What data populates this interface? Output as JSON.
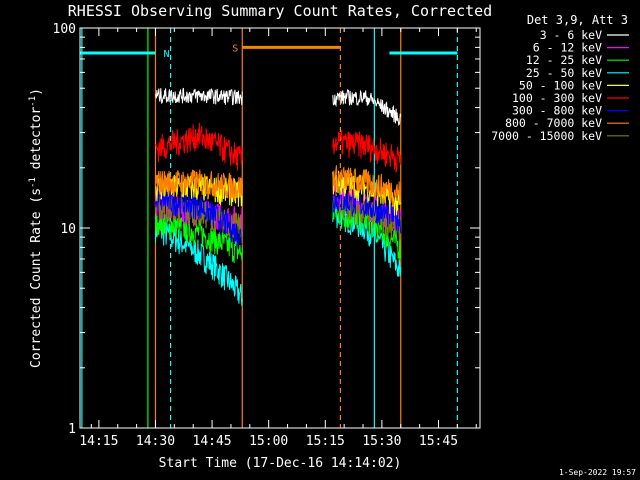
{
  "chart_data": {
    "type": "line",
    "title": "RHESSI Observing Summary Count Rates, Corrected",
    "xlabel": "Start Time (17-Dec-16 14:14:02)",
    "ylabel_main": "Corrected Count Rate (s",
    "ylabel_sup1": "-1",
    "ylabel_mid": " detector",
    "ylabel_sup2": "-1",
    "ylabel_end": ")",
    "yscale": "log",
    "ylim": [
      1,
      100
    ],
    "xlim": [
      "14:10",
      "15:56"
    ],
    "xlim_minutes": [
      850,
      956
    ],
    "xticks": [
      {
        "label": "14:15",
        "min": 855
      },
      {
        "label": "14:30",
        "min": 870
      },
      {
        "label": "14:45",
        "min": 885
      },
      {
        "label": "15:00",
        "min": 900
      },
      {
        "label": "15:15",
        "min": 915
      },
      {
        "label": "15:30",
        "min": 930
      },
      {
        "label": "15:45",
        "min": 945
      }
    ],
    "yticks": [
      {
        "label": "1",
        "value": 1
      },
      {
        "label": "10",
        "value": 10
      },
      {
        "label": "100",
        "value": 100
      }
    ],
    "legend_title": "Det 3,9, Att 3",
    "legend_position": "top-right",
    "series": [
      {
        "name": "3 - 6 keV",
        "color": "#ffffff",
        "seg1": [
          46,
          46,
          45
        ],
        "seg2": [
          45,
          45,
          35
        ]
      },
      {
        "name": "6 - 12 keV",
        "color": "#ff00ff",
        "seg1": [
          13,
          12,
          11
        ],
        "seg2": [
          15,
          13,
          11
        ]
      },
      {
        "name": "12 - 25 keV",
        "color": "#00ff00",
        "seg1": [
          11,
          9.5,
          7.5
        ],
        "seg2": [
          12,
          11,
          8
        ]
      },
      {
        "name": "25 - 50 keV",
        "color": "#00ffff",
        "seg1": [
          10,
          7.5,
          4.5
        ],
        "seg2": [
          12,
          10,
          6
        ]
      },
      {
        "name": "50 - 100 keV",
        "color": "#ffff00",
        "seg1": [
          16,
          16,
          15
        ],
        "seg2": [
          17,
          16,
          13
        ]
      },
      {
        "name": "100 - 300 keV",
        "color": "#ff0000",
        "seg1": [
          25,
          29,
          22
        ],
        "seg2": [
          27,
          26,
          22
        ]
      },
      {
        "name": "300 - 800 keV",
        "color": "#0000ff",
        "seg1": [
          14,
          13,
          9
        ],
        "seg2": [
          14,
          13,
          11
        ]
      },
      {
        "name": "800 - 7000 keV",
        "color": "#ff8000",
        "seg1": [
          17,
          17,
          16
        ],
        "seg2": [
          18,
          17,
          15
        ]
      },
      {
        "name": "7000 - 15000 keV",
        "color": "#808000",
        "seg1": [
          13,
          12,
          10
        ],
        "seg2": [
          13,
          12,
          10
        ]
      }
    ],
    "data_segments_minutes": [
      [
        870,
        893
      ],
      [
        917,
        935
      ]
    ],
    "flags": [
      {
        "label": "N",
        "color": "#00ffff",
        "bars": [
          [
            850,
            870
          ],
          [
            932,
            950
          ]
        ],
        "level": 75
      },
      {
        "label": "S",
        "color": "#ff8000",
        "bars": [
          [
            893,
            919
          ]
        ],
        "level": 80
      }
    ],
    "vlines": [
      {
        "min": 850.5,
        "color": "#00ffff",
        "style": "solid"
      },
      {
        "min": 868,
        "color": "#00ff00",
        "style": "solid"
      },
      {
        "min": 870,
        "color": "#ff8000",
        "style": "solid"
      },
      {
        "min": 874,
        "color": "#00ffff",
        "style": "dashed"
      },
      {
        "min": 893,
        "color": "#ff8000",
        "style": "solid"
      },
      {
        "min": 919,
        "color": "#ff8000",
        "style": "dashed"
      },
      {
        "min": 928,
        "color": "#00ffff",
        "style": "solid"
      },
      {
        "min": 935,
        "color": "#ff8000",
        "style": "solid"
      },
      {
        "min": 950,
        "color": "#00ffff",
        "style": "dashed"
      }
    ],
    "footer": "1-Sep-2022 19:57"
  }
}
